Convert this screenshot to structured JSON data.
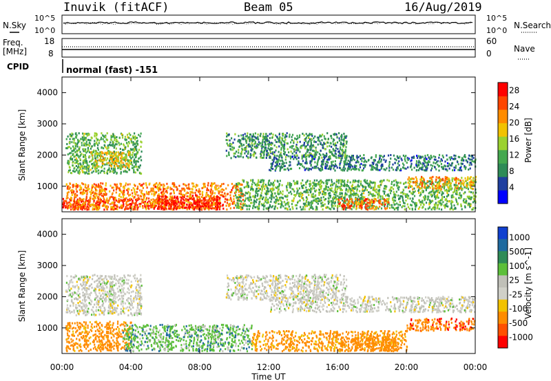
{
  "header": {
    "station": "Inuvik (fitACF)",
    "beam": "Beam 05",
    "date": "16/Aug/2019"
  },
  "top_panels": {
    "nsky_label": "N.Sky",
    "nsky_ticks": [
      "10^5",
      "10^0"
    ],
    "nsearch_label": "N.Search",
    "nsearch_ticks": [
      "10^5",
      "10^0"
    ],
    "freq_label": "Freq.",
    "freq_unit": "[MHz]",
    "freq_ticks": [
      "18",
      "8"
    ],
    "nave_label": "Nave",
    "nave_ticks": [
      "60",
      "0"
    ],
    "cpid_label": "CPID",
    "cpid_value": "normal (fast) -151"
  },
  "colors": {
    "power_scale": [
      "#0000ff",
      "#1f3f9f",
      "#2e8b57",
      "#44a84f",
      "#9bd12f",
      "#f2c200",
      "#ff8c00",
      "#ff4500",
      "#ff0000"
    ],
    "velocity_scale": [
      "#1040d0",
      "#1f6a9f",
      "#2e8b57",
      "#5cbf3a",
      "#c0c0b8",
      "#d0d0c8",
      "#f2c200",
      "#ff8c00",
      "#ff5000",
      "#ff0000"
    ]
  },
  "chart_data": [
    {
      "type": "heatmap",
      "name": "power",
      "xlabel": "",
      "ylabel": "Slant Range [km]",
      "xlim": [
        "00:00",
        "24:00"
      ],
      "ylim": [
        180,
        4500
      ],
      "yticks": [
        "1000",
        "2000",
        "3000",
        "4000"
      ],
      "colorbar_label": "Power [dB]",
      "colorbar_ticks": [
        "4",
        "8",
        "12",
        "16",
        "20",
        "24",
        "28"
      ],
      "colorbar_range": [
        0,
        30
      ],
      "regions": [
        {
          "t0": 0.0,
          "t1": 8.5,
          "r0": 250,
          "r1": 600,
          "value": 28
        },
        {
          "t0": 0.2,
          "t1": 10.5,
          "r0": 250,
          "r1": 1100,
          "value": 22
        },
        {
          "t0": 5.5,
          "t1": 9.5,
          "r0": 250,
          "r1": 700,
          "value": 28
        },
        {
          "t0": 0.2,
          "t1": 4.6,
          "r0": 1400,
          "r1": 2700,
          "value": 12
        },
        {
          "t0": 1.5,
          "t1": 4.0,
          "r0": 1600,
          "r1": 2100,
          "value": 18
        },
        {
          "t0": 9.5,
          "t1": 16.5,
          "r0": 1900,
          "r1": 2700,
          "value": 10
        },
        {
          "t0": 12.0,
          "t1": 24.0,
          "r0": 1500,
          "r1": 2000,
          "value": 8
        },
        {
          "t0": 10.0,
          "t1": 24.0,
          "r0": 250,
          "r1": 1200,
          "value": 12
        },
        {
          "t0": 16.0,
          "t1": 19.0,
          "r0": 250,
          "r1": 600,
          "value": 24
        },
        {
          "t0": 20.0,
          "t1": 24.0,
          "r0": 900,
          "r1": 1300,
          "value": 20
        }
      ]
    },
    {
      "type": "heatmap",
      "name": "velocity",
      "xlabel": "Time UT",
      "ylabel": "Slant Range [km]",
      "xlim": [
        "00:00",
        "24:00"
      ],
      "ylim": [
        180,
        4500
      ],
      "xticks": [
        "00:00",
        "04:00",
        "08:00",
        "12:00",
        "16:00",
        "20:00",
        "00:00"
      ],
      "yticks": [
        "1000",
        "2000",
        "3000",
        "4000"
      ],
      "colorbar_label": "Velocity [m s^-1]",
      "colorbar_ticks": [
        "1000",
        "500",
        "100",
        "25",
        "-25",
        "-100",
        "-500",
        "-1000"
      ],
      "colorbar_range": [
        -1000,
        1000
      ],
      "regions": [
        {
          "t0": 0.2,
          "t1": 4.6,
          "r0": 1400,
          "r1": 2700,
          "value": 0
        },
        {
          "t0": 0.2,
          "t1": 4.0,
          "r0": 250,
          "r1": 1200,
          "value": -200
        },
        {
          "t0": 3.5,
          "t1": 11.0,
          "r0": 250,
          "r1": 1100,
          "value": 60
        },
        {
          "t0": 9.5,
          "t1": 16.5,
          "r0": 1900,
          "r1": 2700,
          "value": 0
        },
        {
          "t0": 12.0,
          "t1": 24.0,
          "r0": 1500,
          "r1": 2000,
          "value": 0
        },
        {
          "t0": 11.0,
          "t1": 20.0,
          "r0": 250,
          "r1": 900,
          "value": -150
        },
        {
          "t0": 20.0,
          "t1": 24.0,
          "r0": 900,
          "r1": 1300,
          "value": -400
        },
        {
          "t0": 16.0,
          "t1": 19.5,
          "r0": 250,
          "r1": 700,
          "value": -300
        }
      ]
    }
  ]
}
